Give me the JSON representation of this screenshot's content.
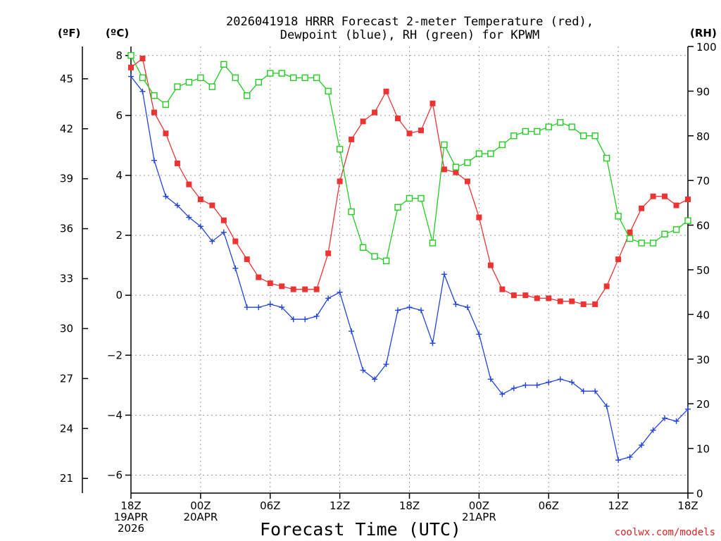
{
  "title": {
    "line1": "2026041918 HRRR Forecast 2-meter Temperature (red),",
    "line2": "Dewpoint (blue), RH (green) for KPWM"
  },
  "units": {
    "left_f": "(ºF)",
    "left_c": "(ºC)",
    "right_rh": "(RH)"
  },
  "xlabel": "Forecast Time (UTC)",
  "credit": "coolwx.com/models",
  "colors": {
    "temp": "#ee3333",
    "dewpoint": "#2244dd",
    "rh": "#22cc22",
    "grid": "#999999",
    "credit": "#dd2222"
  },
  "chart_data": {
    "type": "line",
    "title": "2026041918 HRRR Forecast 2-meter Temperature (red), Dewpoint (blue), RH (green) for KPWM",
    "xlabel": "Forecast Time (UTC)",
    "x_hours": [
      0,
      1,
      2,
      3,
      4,
      5,
      6,
      7,
      8,
      9,
      10,
      11,
      12,
      13,
      14,
      15,
      16,
      17,
      18,
      19,
      20,
      21,
      22,
      23,
      24,
      25,
      26,
      27,
      28,
      29,
      30,
      31,
      32,
      33,
      34,
      35,
      36,
      37,
      38,
      39,
      40,
      41,
      42,
      43,
      44,
      45,
      46,
      47,
      48
    ],
    "x_tick_labels": [
      {
        "hour": 0,
        "lines": [
          "18Z",
          "19APR",
          "2026"
        ]
      },
      {
        "hour": 6,
        "lines": [
          "00Z",
          "20APR"
        ]
      },
      {
        "hour": 12,
        "lines": [
          "06Z"
        ]
      },
      {
        "hour": 18,
        "lines": [
          "12Z"
        ]
      },
      {
        "hour": 24,
        "lines": [
          "18Z"
        ]
      },
      {
        "hour": 30,
        "lines": [
          "00Z",
          "21APR"
        ]
      },
      {
        "hour": 36,
        "lines": [
          "06Z"
        ]
      },
      {
        "hour": 42,
        "lines": [
          "12Z"
        ]
      },
      {
        "hour": 48,
        "lines": [
          "18Z"
        ]
      }
    ],
    "y_celsius": {
      "range": [
        -6.6,
        8.3
      ],
      "ticks": [
        8,
        6,
        4,
        2,
        0,
        -2,
        -4,
        -6
      ],
      "tick_labels": [
        "8",
        "6",
        "4",
        "2",
        "0",
        "−2",
        "−4",
        "−6"
      ]
    },
    "y_fahrenheit": {
      "ticks": [
        45,
        42,
        39,
        36,
        33,
        30,
        27,
        24,
        21
      ],
      "tick_labels": [
        "45",
        "42",
        "39",
        "36",
        "33",
        "30",
        "27",
        "24",
        "21"
      ]
    },
    "y_rh": {
      "range": [
        0,
        100
      ],
      "ticks": [
        100,
        90,
        80,
        70,
        60,
        50,
        40,
        30,
        20,
        10,
        0
      ],
      "tick_labels": [
        "100",
        "90",
        "80",
        "70",
        "60",
        "50",
        "40",
        "30",
        "20",
        "10",
        "0"
      ]
    },
    "grid": true,
    "series": [
      {
        "name": "Temperature",
        "unit": "C",
        "marker": "filled-square",
        "values": [
          7.6,
          7.9,
          6.1,
          5.4,
          4.4,
          3.7,
          3.2,
          3.0,
          2.5,
          1.8,
          1.2,
          0.6,
          0.4,
          0.3,
          0.2,
          0.2,
          0.2,
          1.4,
          3.8,
          5.2,
          5.8,
          6.1,
          6.8,
          5.9,
          5.4,
          5.5,
          6.4,
          4.2,
          4.1,
          3.8,
          2.6,
          1.0,
          0.2,
          0.0,
          0.0,
          -0.1,
          -0.1,
          -0.2,
          -0.2,
          -0.3,
          -0.3,
          0.3,
          1.2,
          2.1,
          2.9,
          3.3,
          3.3,
          3.0,
          3.2
        ]
      },
      {
        "name": "Dewpoint",
        "unit": "C",
        "marker": "plus",
        "values": [
          7.3,
          6.8,
          4.5,
          3.3,
          3.0,
          2.6,
          2.3,
          1.8,
          2.1,
          0.9,
          -0.4,
          -0.4,
          -0.3,
          -0.4,
          -0.8,
          -0.8,
          -0.7,
          -0.1,
          0.1,
          -1.2,
          -2.5,
          -2.8,
          -2.3,
          -0.5,
          -0.4,
          -0.5,
          -1.6,
          0.7,
          -0.3,
          -0.4,
          -1.3,
          -2.8,
          -3.3,
          -3.1,
          -3.0,
          -3.0,
          -2.9,
          -2.8,
          -2.9,
          -3.2,
          -3.2,
          -3.7,
          -5.5,
          -5.4,
          -5.0,
          -4.5,
          -4.1,
          -4.2,
          -3.8
        ]
      },
      {
        "name": "RH",
        "unit": "%",
        "marker": "open-square",
        "values": [
          98,
          93,
          89,
          87,
          91,
          92,
          93,
          91,
          96,
          93,
          89,
          92,
          94,
          94,
          93,
          93,
          93,
          90,
          77,
          63,
          55,
          53,
          52,
          64,
          66,
          66,
          56,
          78,
          73,
          74,
          76,
          76,
          78,
          80,
          81,
          81,
          82,
          83,
          82,
          80,
          80,
          75,
          62,
          57,
          56,
          56,
          58,
          59,
          61
        ]
      }
    ]
  }
}
